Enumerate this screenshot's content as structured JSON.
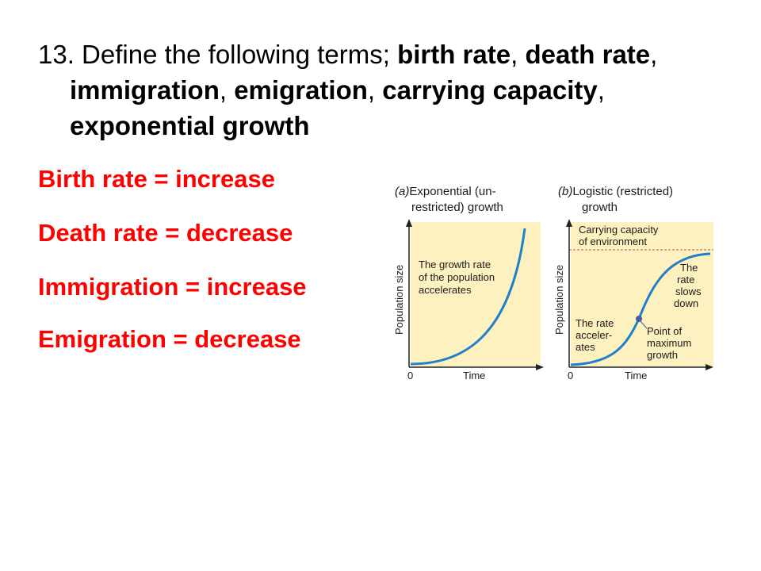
{
  "question": {
    "number": "13.",
    "intro": " Define the following terms; ",
    "terms": [
      "birth rate",
      "death rate",
      "immigration",
      "emigration",
      "carrying capacity",
      "exponential growth"
    ],
    "separator": ", "
  },
  "definitions": [
    "Birth rate = increase",
    "Death rate = decrease",
    "Immigration = increase",
    "Emigration = decrease"
  ],
  "figure": {
    "panel_a": {
      "label": "(a)",
      "title_line1": "Exponential (un-",
      "title_line2": "restricted) growth",
      "annotation": [
        "The growth rate",
        "of the population",
        "accelerates"
      ],
      "y_axis_label": "Population size",
      "x_axis_label": "Time",
      "origin_label": "0"
    },
    "panel_b": {
      "label": "(b)",
      "title_line1": "Logistic (restricted)",
      "title_line2": "growth",
      "capacity_label": [
        "Carrying capacity",
        "of environment"
      ],
      "slows_label": [
        "The",
        "rate",
        "slows",
        "down"
      ],
      "accel_label": [
        "The rate",
        "acceler-",
        "ates"
      ],
      "point_label": [
        "Point of",
        "maximum",
        "growth"
      ],
      "y_axis_label": "Population size",
      "x_axis_label": "Time",
      "origin_label": "0"
    },
    "colors": {
      "panel_fill": "#fdf1c0",
      "curve": "#1f7fc9",
      "capacity_line": "#c0504d",
      "axis": "#222222"
    }
  }
}
